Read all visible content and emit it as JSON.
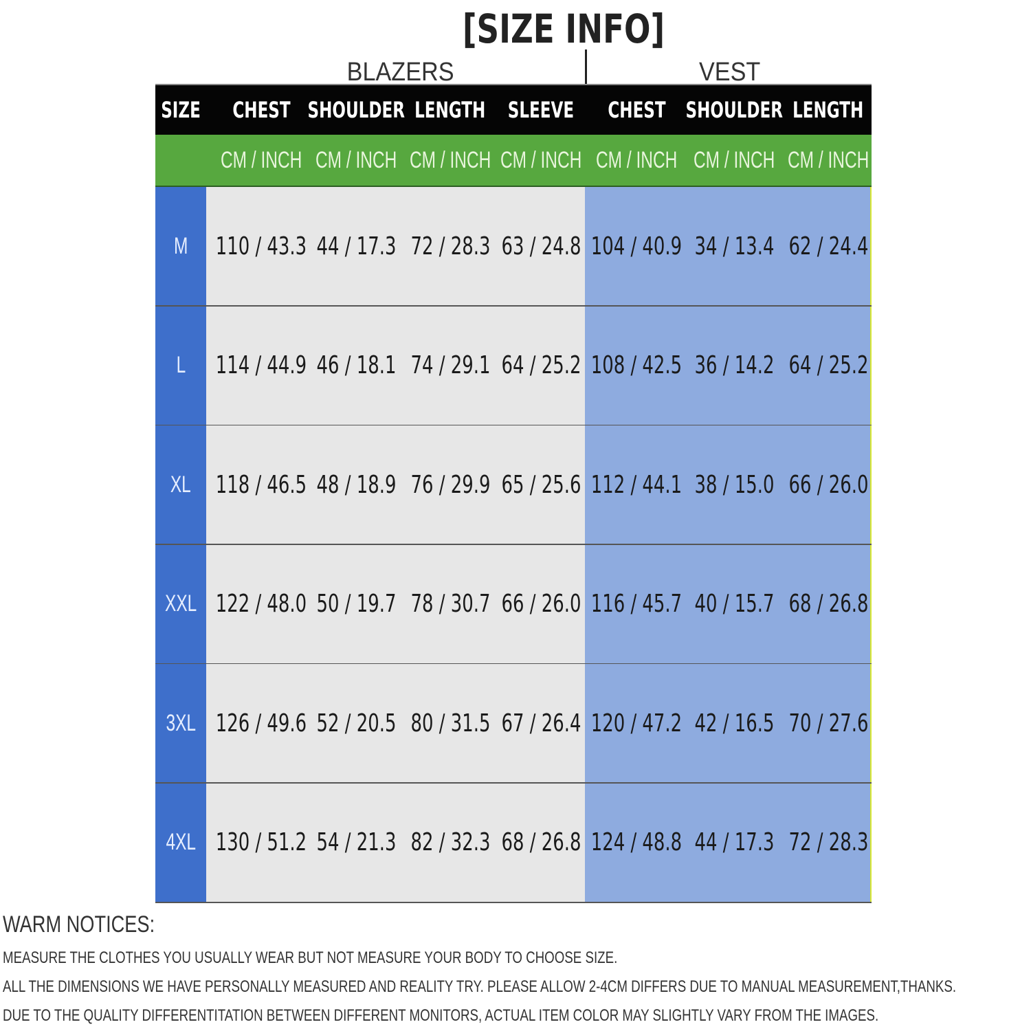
{
  "title": "[SIZE INFO]",
  "groups": {
    "blazers": "BLAZERS",
    "vest": "VEST"
  },
  "headers": [
    "SIZE",
    "CHEST",
    "SHOULDER",
    "LENGTH",
    "SLEEVE",
    "CHEST",
    "SHOULDER",
    "LENGTH"
  ],
  "unit_label": "CM / INCH",
  "rows": [
    {
      "size": "M",
      "values": [
        "110 / 43.3",
        "44 / 17.3",
        "72 / 28.3",
        "63 / 24.8",
        "104 / 40.9",
        "34 / 13.4",
        "62 / 24.4"
      ]
    },
    {
      "size": "L",
      "values": [
        "114 / 44.9",
        "46 / 18.1",
        "74 / 29.1",
        "64 / 25.2",
        "108 / 42.5",
        "36 / 14.2",
        "64 / 25.2"
      ]
    },
    {
      "size": "XL",
      "values": [
        "118 / 46.5",
        "48 / 18.9",
        "76 / 29.9",
        "65 / 25.6",
        "112 / 44.1",
        "38 / 15.0",
        "66 / 26.0"
      ]
    },
    {
      "size": "XXL",
      "values": [
        "122 / 48.0",
        "50 / 19.7",
        "78 / 30.7",
        "66 / 26.0",
        "116 / 45.7",
        "40 / 15.7",
        "68 / 26.8"
      ]
    },
    {
      "size": "3XL",
      "values": [
        "126 / 49.6",
        "52 / 20.5",
        "80 / 31.5",
        "67 / 26.4",
        "120 / 47.2",
        "42 / 16.5",
        "70 / 27.6"
      ]
    },
    {
      "size": "4XL",
      "values": [
        "130 / 51.2",
        "54 / 21.3",
        "82 / 32.3",
        "68 / 26.8",
        "124 / 48.8",
        "44 / 17.3",
        "72 / 28.3"
      ]
    }
  ],
  "notices": {
    "heading": "WARM NOTICES:",
    "lines": [
      "MEASURE THE CLOTHES YOU USUALLY WEAR BUT NOT MEASURE YOUR BODY TO CHOOSE SIZE.",
      "ALL THE DIMENSIONS WE HAVE PERSONALLY MEASURED AND REALITY TRY. PLEASE ALLOW 2-4CM DIFFERS DUE TO MANUAL MEASUREMENT,THANKS.",
      "DUE TO THE QUALITY DIFFERENTITATION BETWEEN DIFFERENT MONITORS, ACTUAL ITEM COLOR MAY SLIGHTLY VARY FROM THE IMAGES."
    ]
  },
  "colors": {
    "header": "#050505",
    "units": "#57a83f",
    "size_col": "#3e6fcb",
    "blazers": "#e7e7e7",
    "vest": "#8eabdf"
  }
}
